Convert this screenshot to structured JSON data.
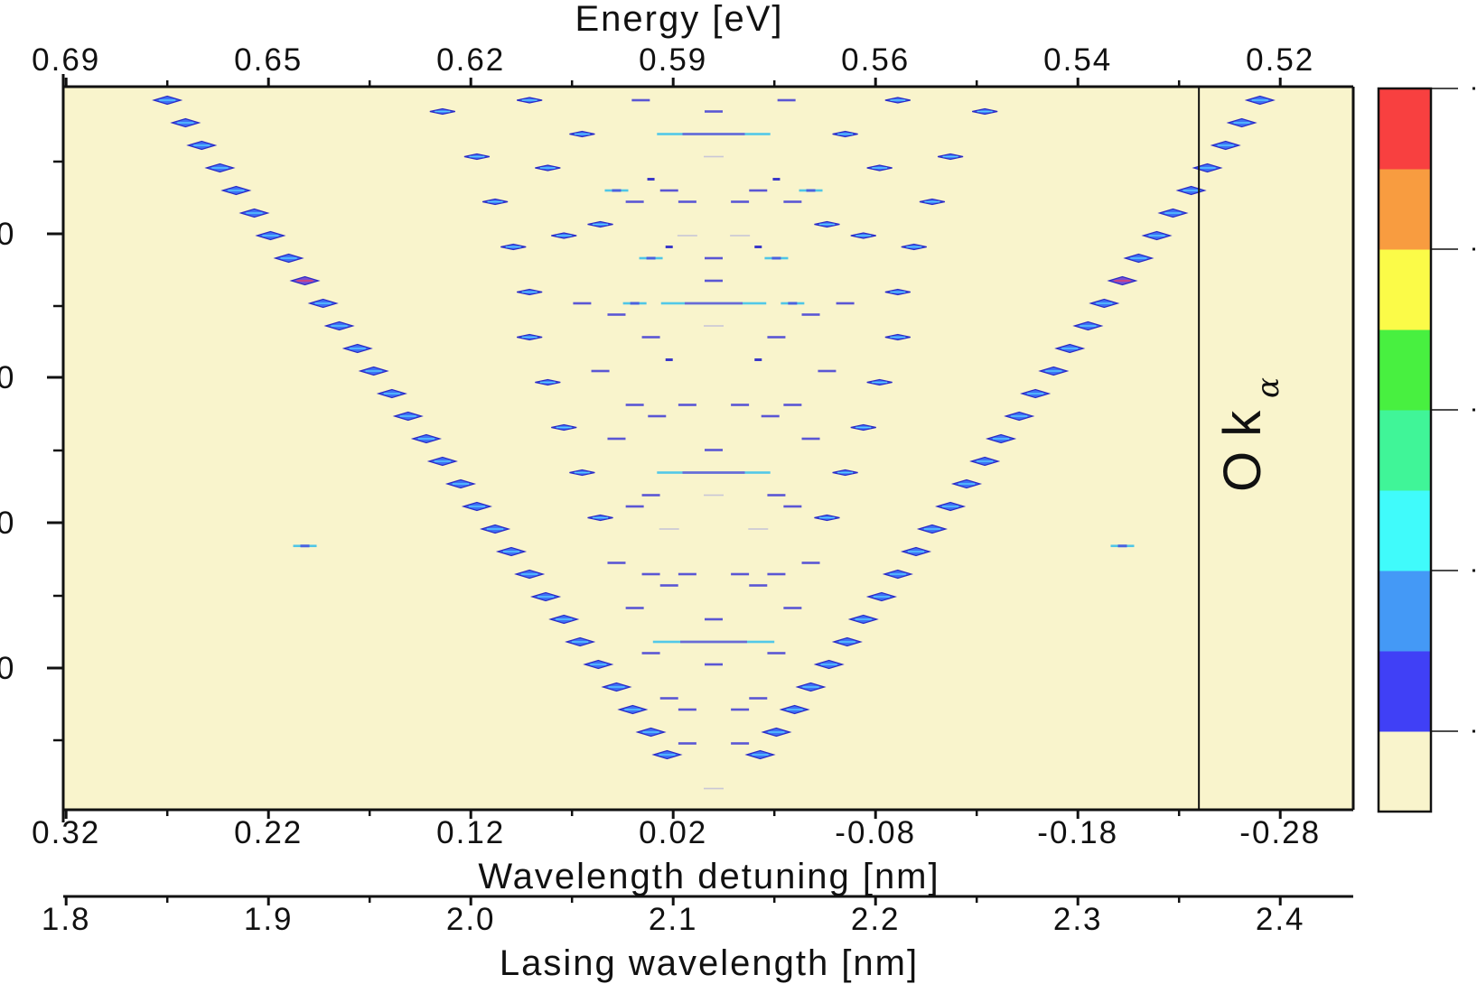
{
  "chart_data": {
    "type": "heatmap",
    "top_axis": {
      "title": "Energy [eV]",
      "ticks": [
        {
          "at": 0.32,
          "label": "0.69"
        },
        {
          "at": 0.22,
          "label": "0.65"
        },
        {
          "at": 0.12,
          "label": "0.62"
        },
        {
          "at": 0.02,
          "label": "0.59"
        },
        {
          "at": -0.08,
          "label": "0.56"
        },
        {
          "at": -0.18,
          "label": "0.54"
        },
        {
          "at": -0.28,
          "label": "0.52"
        }
      ]
    },
    "x_axis": {
      "title": "Wavelength detuning [nm]",
      "xlim": [
        0.3214,
        -0.316
      ],
      "ticks": [
        {
          "at": 0.32,
          "label": "0.32"
        },
        {
          "at": 0.22,
          "label": "0.22"
        },
        {
          "at": 0.12,
          "label": "0.12"
        },
        {
          "at": 0.02,
          "label": "0.02"
        },
        {
          "at": -0.08,
          "label": "-0.08"
        },
        {
          "at": -0.18,
          "label": "-0.18"
        },
        {
          "at": -0.28,
          "label": "-0.28"
        }
      ]
    },
    "second_x_axis": {
      "title": "Lasing wavelength [nm]",
      "ticks": [
        {
          "at": 0.32,
          "label": "1.8"
        },
        {
          "at": 0.22,
          "label": "1.9"
        },
        {
          "at": 0.12,
          "label": "2.0"
        },
        {
          "at": 0.02,
          "label": "2.1"
        },
        {
          "at": -0.08,
          "label": "2.2"
        },
        {
          "at": -0.18,
          "label": "2.3"
        },
        {
          "at": -0.28,
          "label": "2.4"
        }
      ]
    },
    "y_axis": {
      "title": "",
      "ylim": [
        -1.04,
        62.9
      ],
      "major_ticks": [
        {
          "at": 11.84,
          "label": "0"
        },
        {
          "at": 24.56,
          "label": "0"
        },
        {
          "at": 37.44,
          "label": "0"
        },
        {
          "at": 50.32,
          "label": "0"
        }
      ],
      "minor_ticks": [
        5.44,
        18.24,
        31.04,
        43.92,
        56.72
      ]
    },
    "annotation": {
      "text": "O k",
      "sub": "α",
      "line_at": -0.2398
    },
    "background_color": "#f9f4cc",
    "colorbar": {
      "colors": [
        "#f9f4cc",
        "#4040f6",
        "#4499f6",
        "#40fbfb",
        "#40f598",
        "#48f040",
        "#fbfb48",
        "#f89c40",
        "#f84040"
      ],
      "tick_every_bands": 2
    },
    "arm_points": [
      [
        0.27,
        0
      ],
      [
        0.261,
        2
      ],
      [
        0.253,
        4
      ],
      [
        0.244,
        6
      ],
      [
        0.236,
        8
      ],
      [
        0.227,
        10
      ],
      [
        0.219,
        12
      ],
      [
        0.21,
        14
      ],
      [
        0.202,
        16,
        "hi"
      ],
      [
        0.193,
        18
      ],
      [
        0.185,
        20
      ],
      [
        0.176,
        22
      ],
      [
        0.168,
        24
      ],
      [
        0.159,
        26
      ],
      [
        0.151,
        28
      ],
      [
        0.142,
        30
      ],
      [
        0.134,
        32
      ],
      [
        0.125,
        34
      ],
      [
        0.117,
        36
      ],
      [
        0.108,
        38
      ],
      [
        0.1,
        40
      ],
      [
        0.091,
        42
      ],
      [
        0.083,
        44
      ],
      [
        0.074,
        46
      ],
      [
        0.066,
        48
      ],
      [
        0.057,
        50
      ],
      [
        0.048,
        52
      ],
      [
        0.04,
        54
      ],
      [
        0.031,
        56
      ],
      [
        0.023,
        58
      ]
    ],
    "interior_points": [
      [
        0.091,
        0,
        "blob"
      ],
      [
        0.036,
        0,
        "dash"
      ],
      [
        0.134,
        1,
        "blob"
      ],
      [
        0,
        1,
        "dash"
      ],
      [
        0.065,
        3,
        "blob"
      ],
      [
        0,
        3,
        "line",
        0.028
      ],
      [
        0.117,
        5,
        "blob"
      ],
      [
        0,
        5,
        "faint"
      ],
      [
        0.082,
        6,
        "blob"
      ],
      [
        0.031,
        7,
        "dot"
      ],
      [
        0.048,
        8,
        "cyan"
      ],
      [
        0.022,
        8,
        "dash"
      ],
      [
        0.108,
        9,
        "blob"
      ],
      [
        0.039,
        9,
        "dash"
      ],
      [
        0.013,
        9,
        "dash"
      ],
      [
        0.056,
        11,
        "blob"
      ],
      [
        0.074,
        12,
        "blob"
      ],
      [
        0.013,
        12,
        "faint"
      ],
      [
        0.099,
        13,
        "blob"
      ],
      [
        0.022,
        13,
        "dot"
      ],
      [
        0.031,
        14,
        "cyan"
      ],
      [
        0,
        14,
        "dash"
      ],
      [
        0,
        16,
        "dash"
      ],
      [
        0.091,
        17,
        "blob"
      ],
      [
        0.065,
        18,
        "dash"
      ],
      [
        0.039,
        18,
        "cyan"
      ],
      [
        0,
        18,
        "line",
        0.026
      ],
      [
        0.048,
        19,
        "dash"
      ],
      [
        0,
        20,
        "faint"
      ],
      [
        0.091,
        21,
        "blob"
      ],
      [
        0.031,
        21,
        "dash"
      ],
      [
        0.022,
        23,
        "dot"
      ],
      [
        0.056,
        24,
        "dash"
      ],
      [
        0.082,
        25,
        "blob"
      ],
      [
        0.039,
        27,
        "dash"
      ],
      [
        0.013,
        27,
        "dash"
      ],
      [
        0.028,
        28,
        "dash"
      ],
      [
        0.074,
        29,
        "blob"
      ],
      [
        0.048,
        30,
        "dash"
      ],
      [
        0,
        31,
        "dash"
      ],
      [
        0.065,
        33,
        "blob"
      ],
      [
        0,
        33,
        "line",
        0.028
      ],
      [
        0.031,
        35,
        "dash"
      ],
      [
        0,
        35,
        "faint"
      ],
      [
        0.039,
        36,
        "dash"
      ],
      [
        0.056,
        37,
        "blob"
      ],
      [
        0.022,
        38,
        "faint"
      ],
      [
        0.202,
        39.5,
        "cyan"
      ],
      [
        0.048,
        41,
        "dash"
      ],
      [
        0.031,
        42,
        "dash"
      ],
      [
        0.013,
        42,
        "dash"
      ],
      [
        0.022,
        43,
        "dash"
      ],
      [
        0.039,
        45,
        "dash"
      ],
      [
        0,
        46,
        "dash"
      ],
      [
        0,
        48,
        "line",
        0.03
      ],
      [
        0.031,
        49,
        "dash"
      ],
      [
        0,
        50,
        "dash"
      ],
      [
        0.022,
        53,
        "dash"
      ],
      [
        0.013,
        54,
        "dash"
      ],
      [
        0.013,
        57,
        "dash"
      ],
      [
        0,
        61,
        "faint"
      ]
    ]
  }
}
